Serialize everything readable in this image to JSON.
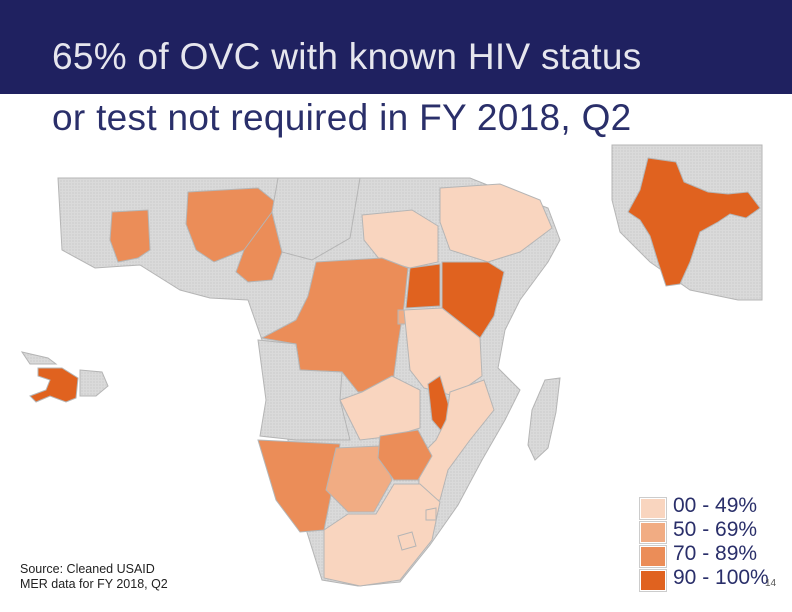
{
  "slide": {
    "title_line1": "65% of OVC with known HIV status",
    "title_line2": "or test not required in FY 2018, Q2",
    "source_line1": "Source: Cleaned USAID",
    "source_line2": "MER data for FY 2018, Q2",
    "page_number": "14"
  },
  "colors": {
    "title_band": "#1f2160",
    "base_country": "#d7d7d7",
    "border": "#b5b5b5"
  },
  "legend": [
    {
      "label": "00 - 49%",
      "color": "#f9d5bf"
    },
    {
      "label": "50 - 69%",
      "color": "#f1ac83"
    },
    {
      "label": "70 - 89%",
      "color": "#eb8d58"
    },
    {
      "label": "90 - 100%",
      "color": "#e0621f"
    }
  ]
}
